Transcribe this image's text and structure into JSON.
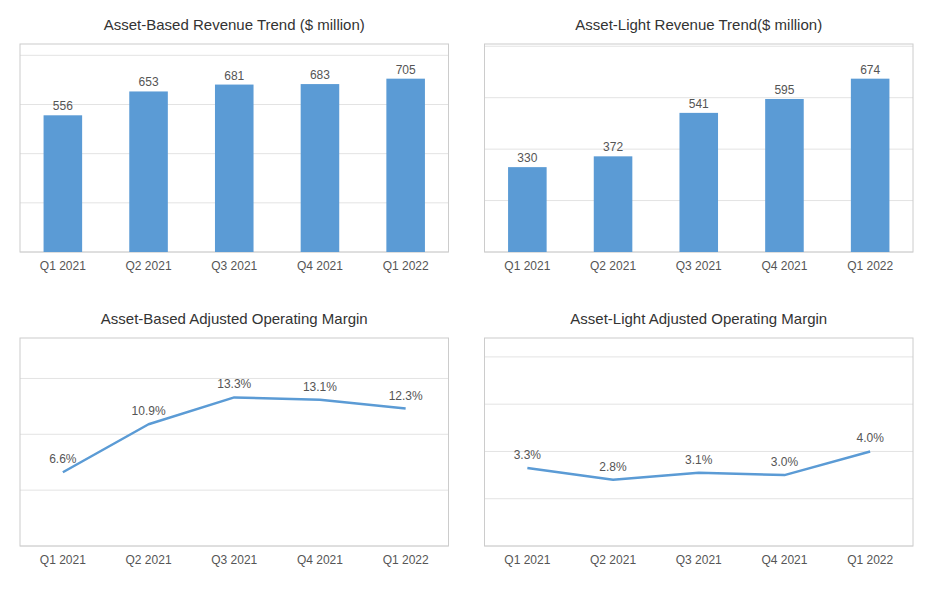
{
  "chart_data": [
    {
      "type": "bar",
      "title": "Asset-Based Revenue Trend ($ million)",
      "categories": [
        "Q1 2021",
        "Q2 2021",
        "Q3 2021",
        "Q4 2021",
        "Q1 2022"
      ],
      "values": [
        556,
        653,
        681,
        683,
        705
      ],
      "color": "#5B9BD5",
      "ylim": [
        0,
        846
      ],
      "yticks": [
        0,
        200,
        400,
        600,
        800
      ],
      "grid": true,
      "data_labels": true,
      "tick_labels": "x"
    },
    {
      "type": "bar",
      "title": "Asset-Light Revenue Trend($ million)",
      "categories": [
        "Q1 2021",
        "Q2 2021",
        "Q3 2021",
        "Q4 2021",
        "Q1 2022"
      ],
      "values": [
        330,
        372,
        541,
        595,
        674
      ],
      "color": "#5B9BD5",
      "ylim": [
        0,
        808.8
      ],
      "yticks": [
        0,
        200,
        400,
        600,
        800
      ],
      "grid": true,
      "data_labels": true,
      "tick_labels": "x"
    },
    {
      "type": "line",
      "title": "Asset-Based Adjusted Operating Margin",
      "categories": [
        "Q1 2021",
        "Q2 2021",
        "Q3 2021",
        "Q4 2021",
        "Q1 2022"
      ],
      "values": [
        6.6,
        10.9,
        13.3,
        13.1,
        12.3
      ],
      "value_labels": [
        "6.6%",
        "10.9%",
        "13.3%",
        "13.1%",
        "12.3%"
      ],
      "color": "#5B9BD5",
      "ylim": [
        0,
        18.62
      ],
      "yticks": [
        0,
        5,
        10,
        15
      ],
      "grid": true,
      "data_labels": true,
      "tick_labels": "x"
    },
    {
      "type": "line",
      "title": "Asset-Light Adjusted Operating Margin",
      "categories": [
        "Q1 2021",
        "Q2 2021",
        "Q3 2021",
        "Q4 2021",
        "Q1 2022"
      ],
      "values": [
        3.3,
        2.8,
        3.1,
        3.0,
        4.0
      ],
      "value_labels": [
        "3.3%",
        "2.8%",
        "3.1%",
        "3.0%",
        "4.0%"
      ],
      "color": "#5B9BD5",
      "ylim": [
        0,
        8.8
      ],
      "yticks": [
        0,
        2,
        4,
        6,
        8
      ],
      "grid": true,
      "data_labels": true,
      "tick_labels": "x"
    }
  ]
}
